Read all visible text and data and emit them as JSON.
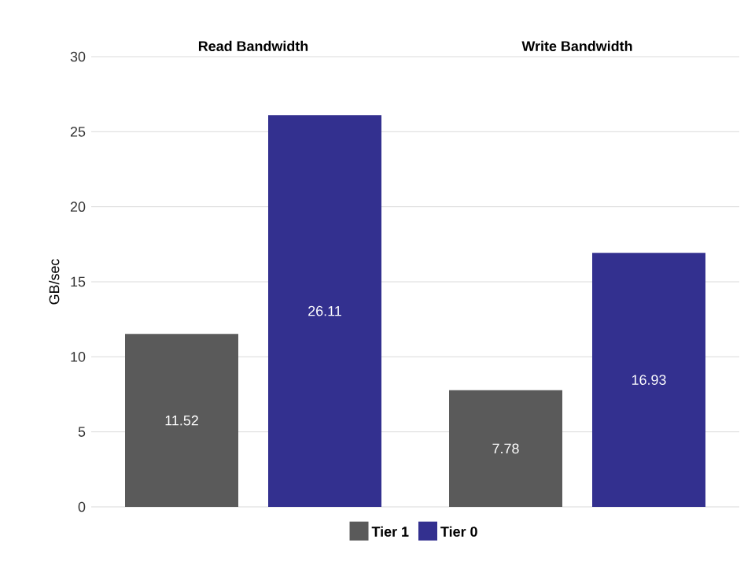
{
  "chart_data": {
    "type": "bar",
    "categories": [
      "Read Bandwidth",
      "Write Bandwidth"
    ],
    "ylabel": "GB/sec",
    "ylim": [
      0,
      30
    ],
    "yticks": [
      0,
      5,
      10,
      15,
      20,
      25,
      30
    ],
    "grid": "y",
    "legend": "bottom",
    "data_labels": true,
    "series": [
      {
        "name": "Tier 1",
        "color": "#5a5a5a",
        "values": [
          11.52,
          7.78
        ]
      },
      {
        "name": "Tier 0",
        "color": "#33308f",
        "values": [
          26.11,
          16.93
        ]
      }
    ]
  }
}
